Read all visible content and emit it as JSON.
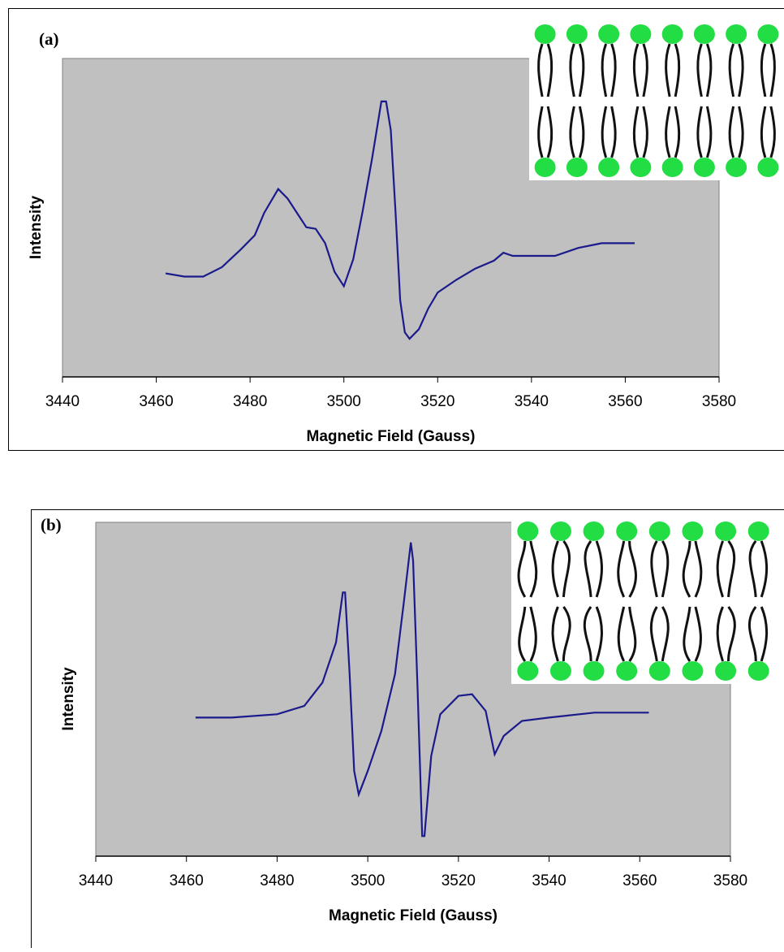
{
  "chart_data": [
    {
      "type": "line",
      "panel_label": "(a)",
      "x_label": "Magnetic Field (Gauss)",
      "y_label": "Intensity",
      "xlim": [
        3440,
        3580
      ],
      "xticks": [
        3440,
        3460,
        3480,
        3500,
        3520,
        3540,
        3560,
        3580
      ],
      "ylim": [
        -100,
        100
      ],
      "series": [
        {
          "color": "#1a1a8c",
          "x": [
            3462,
            3466,
            3470,
            3474,
            3478,
            3481,
            3483,
            3486,
            3488,
            3490,
            3492,
            3494,
            3496,
            3498,
            3500,
            3502,
            3504,
            3506,
            3508,
            3509,
            3510,
            3511,
            3512,
            3513,
            3514,
            3516,
            3518,
            3520,
            3524,
            3528,
            3532,
            3534,
            3536,
            3540,
            3545,
            3550,
            3555,
            3560,
            3562
          ],
          "values": [
            -35,
            -37,
            -37,
            -31,
            -20,
            -11,
            3,
            18,
            12,
            3,
            -6,
            -7,
            -16,
            -34,
            -43,
            -26,
            4,
            37,
            73,
            73,
            55,
            4,
            -52,
            -72,
            -76,
            -70,
            -57,
            -47,
            -39,
            -32,
            -27,
            -22,
            -24,
            -24,
            -24,
            -19,
            -16,
            -16,
            -16
          ]
        }
      ]
    },
    {
      "type": "line",
      "panel_label": "(b)",
      "x_label": "Magnetic Field (Gauss)",
      "y_label": "Intensity",
      "xlim": [
        3440,
        3580
      ],
      "xticks": [
        3440,
        3460,
        3480,
        3500,
        3520,
        3540,
        3560,
        3580
      ],
      "ylim": [
        -100,
        100
      ],
      "series": [
        {
          "color": "#1a1a8c",
          "x": [
            3462,
            3470,
            3480,
            3486,
            3490,
            3493,
            3494.5,
            3495,
            3496,
            3497,
            3498,
            3500,
            3503,
            3506,
            3508,
            3509.5,
            3510,
            3511,
            3512,
            3512.5,
            3514,
            3516,
            3520,
            3523,
            3526,
            3528,
            3530,
            3534,
            3540,
            3550,
            3562
          ],
          "values": [
            -17,
            -17,
            -15,
            -10,
            4,
            28,
            58,
            58,
            9,
            -49,
            -63,
            -49,
            -25,
            9,
            53,
            88,
            77,
            -1,
            -88,
            -88,
            -40,
            -15,
            -4,
            -3,
            -13,
            -39,
            -28,
            -19,
            -17,
            -14,
            -14
          ]
        }
      ]
    }
  ]
}
